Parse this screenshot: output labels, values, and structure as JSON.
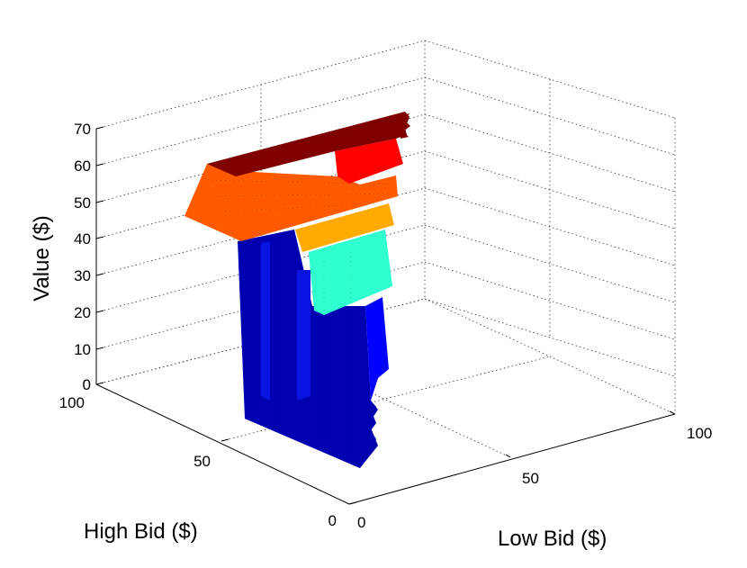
{
  "chart_data": {
    "type": "surface3d",
    "xlabel": "Low Bid ($)",
    "ylabel": "High Bid ($)",
    "zlabel": "Value ($)",
    "x_ticks": [
      "0",
      "50",
      "100"
    ],
    "y_ticks": [
      "0",
      "50",
      "100"
    ],
    "z_ticks": [
      "0",
      "10",
      "20",
      "30",
      "40",
      "50",
      "60",
      "70"
    ],
    "xlim": [
      0,
      100
    ],
    "ylim": [
      0,
      100
    ],
    "zlim": [
      0,
      70
    ],
    "grid": true,
    "colormap": "jet",
    "value_levels": [
      {
        "value": 65,
        "color": "#800000"
      },
      {
        "value": 62,
        "color": "#ff0000"
      },
      {
        "value": 48,
        "color": "#ff5a00"
      },
      {
        "value": 45,
        "color": "#ffaa00"
      },
      {
        "value": 30,
        "color": "#30ffd0"
      },
      {
        "value": 20,
        "color": "#0000ff"
      },
      {
        "value": 0,
        "color": "#0000b0"
      }
    ]
  }
}
